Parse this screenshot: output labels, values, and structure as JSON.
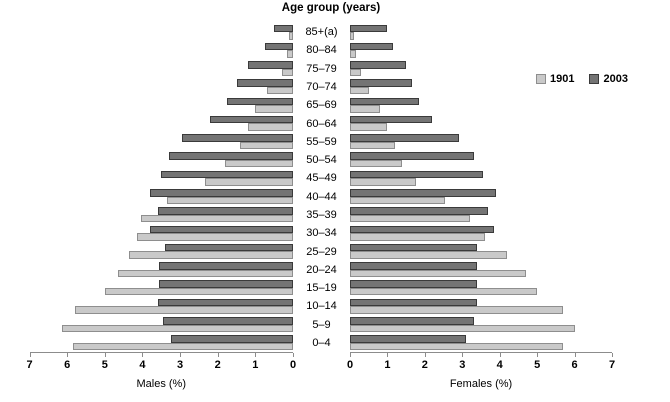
{
  "chart_data": {
    "type": "bar",
    "subtype": "population_pyramid",
    "title": "Age group (years)",
    "xlabel_left": "Males (%)",
    "xlabel_right": "Females (%)",
    "xlim": [
      0,
      7
    ],
    "left_axis_ticks": [
      "7",
      "6",
      "5",
      "4",
      "3",
      "2",
      "1",
      "0"
    ],
    "right_axis_ticks": [
      "0",
      "1",
      "2",
      "3",
      "4",
      "5",
      "6",
      "7"
    ],
    "age_groups_top_to_bottom": [
      "85+(a)",
      "80–84",
      "75–79",
      "70–74",
      "65–69",
      "60–64",
      "55–59",
      "50–54",
      "45–49",
      "40–44",
      "35–39",
      "30–34",
      "25–29",
      "20–24",
      "15–19",
      "10–14",
      "5–9",
      "0–4"
    ],
    "series": [
      {
        "name": "Males 1901",
        "side": "left",
        "year": "1901",
        "values": [
          0.1,
          0.15,
          0.3,
          0.7,
          1.0,
          1.2,
          1.4,
          1.8,
          2.35,
          3.35,
          4.05,
          4.15,
          4.35,
          4.65,
          5.0,
          5.8,
          6.15,
          5.85
        ]
      },
      {
        "name": "Males 2003",
        "side": "left",
        "year": "2003",
        "values": [
          0.5,
          0.75,
          1.2,
          1.5,
          1.75,
          2.2,
          2.95,
          3.3,
          3.5,
          3.8,
          3.6,
          3.8,
          3.4,
          3.55,
          3.55,
          3.6,
          3.45,
          3.25
        ]
      },
      {
        "name": "Females 1901",
        "side": "right",
        "year": "1901",
        "values": [
          0.1,
          0.15,
          0.3,
          0.5,
          0.8,
          1.0,
          1.2,
          1.4,
          1.75,
          2.55,
          3.2,
          3.6,
          4.2,
          4.7,
          5.0,
          5.7,
          6.0,
          5.7
        ]
      },
      {
        "name": "Females 2003",
        "side": "right",
        "year": "2003",
        "values": [
          1.0,
          1.15,
          1.5,
          1.65,
          1.85,
          2.2,
          2.9,
          3.3,
          3.55,
          3.9,
          3.7,
          3.85,
          3.4,
          3.4,
          3.4,
          3.4,
          3.3,
          3.1
        ]
      }
    ],
    "legend": [
      {
        "label": "1901",
        "color": "#c9c9c9",
        "border_color": "#8e8e8e"
      },
      {
        "label": "2003",
        "color": "#747474",
        "border_color": "#3a3a3a"
      }
    ],
    "legend_position": "right"
  }
}
